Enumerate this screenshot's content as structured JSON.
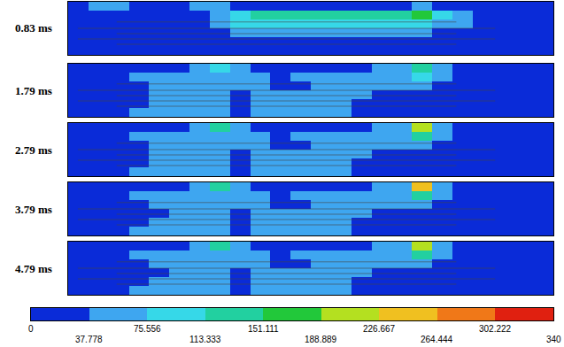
{
  "chart_data": {
    "type": "heatmap",
    "tick_labels": false,
    "panels": [
      {
        "title": "0.83 ms",
        "cells": [
          [
            20,
            50,
            50,
            20,
            20,
            20,
            60,
            60,
            20,
            20,
            20,
            20,
            20,
            20,
            20,
            20,
            20,
            60,
            20,
            20,
            20,
            20,
            20,
            20
          ],
          [
            20,
            20,
            20,
            20,
            20,
            20,
            20,
            60,
            100,
            130,
            130,
            130,
            130,
            140,
            140,
            130,
            130,
            170,
            100,
            60,
            20,
            20,
            20,
            20
          ],
          [
            20,
            20,
            20,
            20,
            20,
            20,
            20,
            60,
            100,
            100,
            100,
            100,
            100,
            100,
            100,
            100,
            100,
            100,
            60,
            60,
            20,
            20,
            20,
            20
          ],
          [
            20,
            20,
            20,
            20,
            20,
            20,
            20,
            20,
            60,
            60,
            60,
            60,
            60,
            60,
            60,
            60,
            60,
            60,
            20,
            20,
            20,
            20,
            20,
            20
          ],
          [
            20,
            20,
            20,
            20,
            20,
            20,
            20,
            20,
            20,
            20,
            20,
            20,
            20,
            20,
            20,
            20,
            20,
            20,
            20,
            20,
            20,
            20,
            20,
            20
          ],
          [
            20,
            20,
            20,
            20,
            20,
            20,
            20,
            20,
            20,
            20,
            20,
            20,
            20,
            20,
            20,
            20,
            20,
            20,
            20,
            20,
            20,
            20,
            20,
            20
          ]
        ]
      },
      {
        "title": "1.79 ms",
        "cells": [
          [
            20,
            20,
            20,
            20,
            20,
            20,
            60,
            100,
            60,
            20,
            20,
            20,
            20,
            20,
            20,
            60,
            60,
            140,
            60,
            20,
            20,
            20,
            20,
            20
          ],
          [
            20,
            20,
            20,
            60,
            60,
            60,
            60,
            60,
            60,
            60,
            20,
            60,
            60,
            60,
            60,
            60,
            60,
            100,
            60,
            20,
            20,
            20,
            20,
            20
          ],
          [
            20,
            20,
            20,
            20,
            60,
            60,
            60,
            60,
            60,
            60,
            20,
            20,
            60,
            60,
            60,
            60,
            60,
            60,
            20,
            20,
            20,
            20,
            20,
            20
          ],
          [
            20,
            20,
            20,
            20,
            60,
            60,
            60,
            60,
            20,
            60,
            60,
            60,
            60,
            60,
            60,
            20,
            20,
            20,
            20,
            20,
            20,
            20,
            20,
            20
          ],
          [
            20,
            20,
            20,
            20,
            60,
            60,
            60,
            60,
            20,
            60,
            60,
            60,
            60,
            60,
            20,
            20,
            20,
            20,
            20,
            20,
            20,
            20,
            20,
            20
          ],
          [
            20,
            20,
            20,
            60,
            60,
            60,
            60,
            60,
            20,
            60,
            60,
            60,
            60,
            60,
            20,
            20,
            20,
            20,
            20,
            20,
            20,
            20,
            20,
            20
          ]
        ]
      },
      {
        "title": "2.79 ms",
        "cells": [
          [
            20,
            20,
            20,
            20,
            20,
            20,
            60,
            130,
            60,
            20,
            20,
            20,
            20,
            20,
            20,
            60,
            60,
            200,
            60,
            20,
            20,
            20,
            20,
            20
          ],
          [
            20,
            20,
            20,
            60,
            60,
            60,
            60,
            60,
            60,
            60,
            20,
            60,
            60,
            60,
            60,
            60,
            60,
            130,
            60,
            20,
            20,
            20,
            20,
            20
          ],
          [
            20,
            20,
            20,
            20,
            60,
            60,
            60,
            60,
            60,
            60,
            20,
            20,
            60,
            60,
            60,
            60,
            60,
            60,
            20,
            20,
            20,
            20,
            20,
            20
          ],
          [
            20,
            20,
            20,
            20,
            60,
            60,
            60,
            60,
            20,
            60,
            60,
            60,
            60,
            60,
            60,
            20,
            20,
            20,
            20,
            20,
            20,
            20,
            20,
            20
          ],
          [
            20,
            20,
            20,
            20,
            60,
            60,
            60,
            60,
            20,
            60,
            60,
            60,
            60,
            60,
            20,
            20,
            20,
            20,
            20,
            20,
            20,
            20,
            20,
            20
          ],
          [
            20,
            20,
            20,
            60,
            60,
            60,
            60,
            60,
            20,
            60,
            60,
            60,
            60,
            60,
            20,
            20,
            20,
            20,
            20,
            20,
            20,
            20,
            20,
            20
          ]
        ]
      },
      {
        "title": "3.79 ms",
        "cells": [
          [
            20,
            20,
            20,
            20,
            20,
            20,
            60,
            130,
            60,
            20,
            20,
            20,
            20,
            20,
            20,
            60,
            60,
            240,
            60,
            20,
            20,
            20,
            20,
            20
          ],
          [
            20,
            20,
            20,
            60,
            60,
            60,
            60,
            60,
            60,
            60,
            20,
            60,
            60,
            60,
            60,
            60,
            60,
            140,
            60,
            20,
            20,
            20,
            20,
            20
          ],
          [
            20,
            20,
            20,
            20,
            60,
            60,
            60,
            60,
            60,
            60,
            20,
            20,
            60,
            60,
            60,
            60,
            60,
            60,
            20,
            20,
            20,
            20,
            20,
            20
          ],
          [
            20,
            20,
            20,
            20,
            20,
            60,
            60,
            60,
            20,
            60,
            60,
            60,
            60,
            60,
            60,
            20,
            20,
            20,
            20,
            20,
            20,
            20,
            20,
            20
          ],
          [
            20,
            20,
            20,
            20,
            60,
            60,
            60,
            60,
            20,
            60,
            60,
            60,
            60,
            60,
            20,
            20,
            20,
            20,
            20,
            20,
            20,
            20,
            20,
            20
          ],
          [
            20,
            20,
            20,
            60,
            60,
            60,
            60,
            60,
            20,
            60,
            60,
            60,
            60,
            60,
            20,
            20,
            20,
            20,
            20,
            20,
            20,
            20,
            20,
            20
          ]
        ]
      },
      {
        "title": "4.79 ms",
        "cells": [
          [
            20,
            20,
            20,
            20,
            20,
            20,
            60,
            130,
            60,
            20,
            20,
            20,
            20,
            20,
            20,
            60,
            60,
            200,
            60,
            20,
            20,
            20,
            20,
            20
          ],
          [
            20,
            20,
            20,
            60,
            60,
            60,
            60,
            60,
            60,
            60,
            20,
            60,
            60,
            60,
            60,
            60,
            60,
            130,
            60,
            20,
            20,
            20,
            20,
            20
          ],
          [
            20,
            20,
            20,
            20,
            60,
            60,
            60,
            60,
            60,
            60,
            20,
            20,
            60,
            60,
            60,
            60,
            60,
            60,
            20,
            20,
            20,
            20,
            20,
            20
          ],
          [
            20,
            20,
            20,
            20,
            20,
            60,
            60,
            60,
            20,
            60,
            60,
            60,
            60,
            60,
            60,
            20,
            20,
            20,
            20,
            20,
            20,
            20,
            20,
            20
          ],
          [
            20,
            20,
            20,
            20,
            60,
            60,
            60,
            60,
            20,
            60,
            60,
            60,
            60,
            60,
            20,
            20,
            20,
            20,
            20,
            20,
            20,
            20,
            20,
            20
          ],
          [
            20,
            20,
            20,
            60,
            60,
            60,
            60,
            60,
            20,
            60,
            60,
            60,
            60,
            60,
            20,
            20,
            20,
            20,
            20,
            20,
            20,
            20,
            20,
            20
          ]
        ]
      }
    ],
    "colorbar": {
      "range": [
        0,
        340
      ],
      "ticks": [
        0,
        37.778,
        75.556,
        113.333,
        151.111,
        188.889,
        226.667,
        264.444,
        302.222,
        340
      ],
      "colors": [
        "#0a2bd8",
        "#3ea6f0",
        "#36d8e8",
        "#22d0a0",
        "#22c83a",
        "#b4e020",
        "#f0c020",
        "#f07818",
        "#e02010"
      ]
    }
  }
}
